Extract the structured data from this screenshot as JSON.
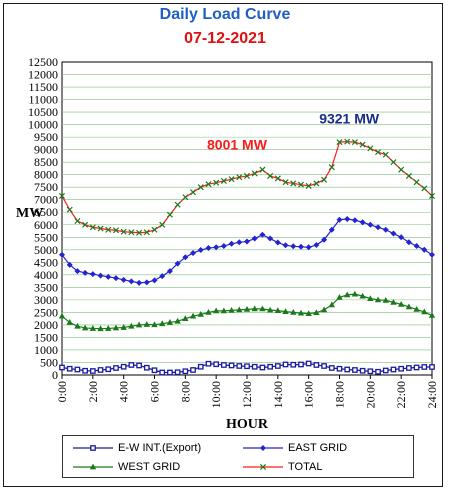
{
  "chart_data": {
    "type": "line",
    "title": "Daily Load Curve",
    "subtitle": "07-12-2021",
    "xlabel": "HOUR",
    "ylabel": "MW",
    "x": [
      "0:00",
      "0:30",
      "1:00",
      "1:30",
      "2:00",
      "2:30",
      "3:00",
      "3:30",
      "4:00",
      "4:30",
      "5:00",
      "5:30",
      "6:00",
      "6:30",
      "7:00",
      "7:30",
      "8:00",
      "8:30",
      "9:00",
      "9:30",
      "10:00",
      "10:30",
      "11:00",
      "11:30",
      "12:00",
      "12:30",
      "13:00",
      "13:30",
      "14:00",
      "14:30",
      "15:00",
      "15:30",
      "16:00",
      "16:30",
      "17:00",
      "17:30",
      "18:00",
      "18:30",
      "19:00",
      "19:30",
      "20:00",
      "20:30",
      "21:00",
      "21:30",
      "22:00",
      "22:30",
      "23:00",
      "23:30",
      "24:00"
    ],
    "x_ticks": [
      "0:00",
      "2:00",
      "4:00",
      "6:00",
      "8:00",
      "10:00",
      "12:00",
      "14:00",
      "16:00",
      "18:00",
      "20:00",
      "22:00",
      "24:00"
    ],
    "ylim": [
      0,
      12500
    ],
    "y_step": 500,
    "grid": true,
    "legend_position": "bottom",
    "series": [
      {
        "name": "E-W INT.(Export)",
        "color": "#1a1aa0",
        "marker": "square",
        "values": [
          300,
          250,
          220,
          170,
          160,
          200,
          230,
          280,
          330,
          400,
          380,
          290,
          190,
          100,
          100,
          110,
          150,
          200,
          330,
          450,
          430,
          400,
          380,
          360,
          350,
          330,
          300,
          330,
          360,
          420,
          410,
          420,
          460,
          400,
          360,
          280,
          250,
          220,
          200,
          170,
          150,
          130,
          180,
          220,
          250,
          280,
          300,
          320,
          320
        ]
      },
      {
        "name": "EAST GRID",
        "color": "#2424d0",
        "marker": "diamond",
        "values": [
          4800,
          4400,
          4150,
          4080,
          4030,
          3970,
          3920,
          3870,
          3800,
          3740,
          3680,
          3700,
          3780,
          3950,
          4150,
          4450,
          4700,
          4870,
          4990,
          5070,
          5100,
          5150,
          5240,
          5300,
          5330,
          5450,
          5600,
          5450,
          5290,
          5180,
          5140,
          5120,
          5100,
          5190,
          5400,
          5800,
          6200,
          6230,
          6180,
          6100,
          6000,
          5900,
          5800,
          5650,
          5500,
          5300,
          5150,
          5000,
          4800
        ]
      },
      {
        "name": "WEST GRID",
        "color": "#1a7a1a",
        "marker": "triangle",
        "values": [
          2350,
          2100,
          1950,
          1880,
          1860,
          1850,
          1860,
          1880,
          1900,
          1950,
          2000,
          2020,
          2010,
          2050,
          2100,
          2150,
          2250,
          2350,
          2420,
          2500,
          2560,
          2560,
          2580,
          2600,
          2620,
          2640,
          2640,
          2590,
          2570,
          2530,
          2500,
          2470,
          2450,
          2490,
          2600,
          2800,
          3100,
          3200,
          3230,
          3150,
          3050,
          3000,
          2980,
          2900,
          2820,
          2720,
          2620,
          2520,
          2380
        ]
      },
      {
        "name": "TOTAL",
        "color": "#ff1a1a",
        "marker": "cross",
        "values": [
          7150,
          6600,
          6150,
          6000,
          5900,
          5850,
          5800,
          5780,
          5720,
          5700,
          5680,
          5700,
          5800,
          6000,
          6400,
          6800,
          7100,
          7300,
          7500,
          7620,
          7680,
          7750,
          7820,
          7900,
          7950,
          8050,
          8200,
          7950,
          7850,
          7700,
          7650,
          7600,
          7550,
          7650,
          7800,
          8300,
          9300,
          9321,
          9300,
          9200,
          9050,
          8900,
          8800,
          8500,
          8200,
          7950,
          7700,
          7450,
          7150
        ]
      }
    ],
    "annotations": [
      {
        "text": "8001 MW",
        "x": "12:00",
        "y": 8050,
        "color": "#ff1a1a"
      },
      {
        "text": "9321 MW",
        "x": "18:30",
        "y": 9321,
        "color": "#1a2a8c"
      }
    ]
  }
}
